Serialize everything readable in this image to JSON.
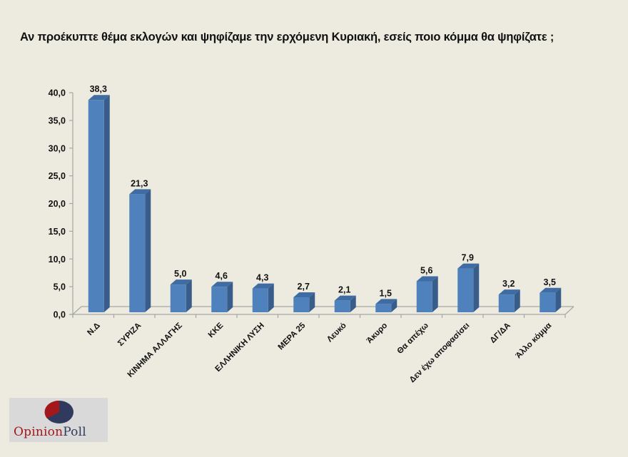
{
  "title": "Αν προέκυπτε θέμα εκλογών και ψηφίζαμε την ερχόμενη Κυριακή, εσείς ποιο κόμμα θα ψηφίζατε ;",
  "logo": {
    "part1": "Opinion",
    "part2": "Poll"
  },
  "colors": {
    "bar_front": "#4f81bd",
    "bar_side": "#385d8a",
    "bar_top": "#3f6ca3",
    "axis": "#a6a6a6",
    "background": "#edebe0",
    "logo_red": "#a3191b",
    "logo_navy": "#2f3a5e"
  },
  "chart_data": {
    "type": "bar",
    "title": "Αν προέκυπτε θέμα εκλογών και ψηφίζαμε την ερχόμενη Κυριακή, εσείς ποιο κόμμα θα ψηφίζατε ;",
    "categories": [
      "Ν.Δ",
      "ΣΥΡΙΖΑ",
      "ΚΙΝΗΜΑ ΑΛΛΑΓΗΣ",
      "ΚΚΕ",
      "ΕΛΛΗΝΙΚΗ ΛΥΣΗ",
      "ΜΕΡΑ 25",
      "Λευκό",
      "Άκυρο",
      "Θα απέχω",
      "Δεν έχω αποφασίσει",
      "ΔΓ/ΔΑ",
      "Άλλο κόμμα"
    ],
    "values": [
      38.3,
      21.3,
      5.0,
      4.6,
      4.3,
      2.7,
      2.1,
      1.5,
      5.6,
      7.9,
      3.2,
      3.5
    ],
    "value_labels": [
      "38,3",
      "21,3",
      "5,0",
      "4,6",
      "4,3",
      "2,7",
      "2,1",
      "1,5",
      "5,6",
      "7,9",
      "3,2",
      "3,5"
    ],
    "xlabel": "",
    "ylabel": "",
    "ylim": [
      0,
      40
    ],
    "yticks": [
      0,
      5,
      10,
      15,
      20,
      25,
      30,
      35,
      40
    ],
    "ytick_labels": [
      "0,0",
      "5,0",
      "10,0",
      "15,0",
      "20,0",
      "25,0",
      "30,0",
      "35,0",
      "40,0"
    ],
    "grid": false,
    "legend": null,
    "style": "3d-column"
  }
}
